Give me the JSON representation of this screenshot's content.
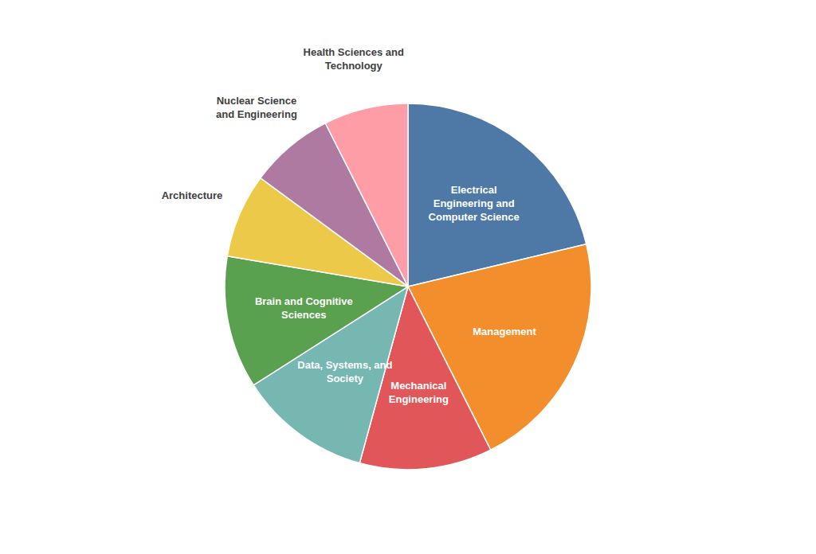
{
  "chart_data": {
    "type": "pie",
    "categories": [
      "Electrical\nEngineering and\nComputer Science",
      "Management",
      "Mechanical\nEngineering",
      "Data, Systems, and\nSociety",
      "Brain and Cognitive\nSciences",
      "Architecture",
      "Nuclear Science\nand Engineering",
      "Health Sciences and\nTechnology"
    ],
    "values": [
      20,
      20,
      11,
      11,
      11,
      7,
      7,
      7
    ]
  }
}
